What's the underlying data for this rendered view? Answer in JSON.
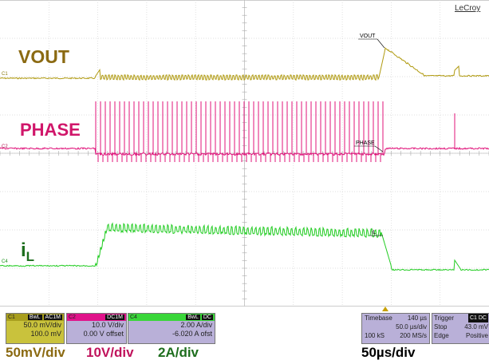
{
  "brand": "LeCroy",
  "traces": {
    "vout": {
      "label": "VOUT",
      "marker": "C1",
      "annotation": "VOUT",
      "color": "#b09a10"
    },
    "phase": {
      "label": "PHASE",
      "marker": "C2",
      "annotation": "PHASE",
      "color": "#e0137a"
    },
    "il": {
      "label_main": "i",
      "label_sub": "L",
      "marker": "C4",
      "annotation": "iL",
      "color": "#22cc22"
    }
  },
  "channels": {
    "c1": {
      "id": "C1",
      "tags": [
        "BwL",
        "AC1M"
      ],
      "scale": "50.0 mV/div",
      "offset": "100.0 mV"
    },
    "c2": {
      "id": "C2",
      "tags": [
        "DC1M"
      ],
      "scale": "10.0 V/div",
      "offset": "0.00 V offset"
    },
    "c4": {
      "id": "C4",
      "tags": [
        "BwL",
        "DC"
      ],
      "scale": "2.00 A/div",
      "offset": "-6.020 A ofst"
    }
  },
  "timebase": {
    "title": "Timebase",
    "delay": "140 µs",
    "per_div": "50.0 µs/div",
    "samples": "100 kS",
    "rate": "200 MS/s"
  },
  "trigger": {
    "title": "Trigger",
    "channel_tag": "C1 DC",
    "mode": "Stop",
    "level": "43.0 mV",
    "type": "Edge",
    "slope": "Positive"
  },
  "scale_summary": {
    "c1": "50mV/div",
    "c2": "10V/div",
    "c4": "2A/div",
    "timebase": "50µs/div"
  }
}
